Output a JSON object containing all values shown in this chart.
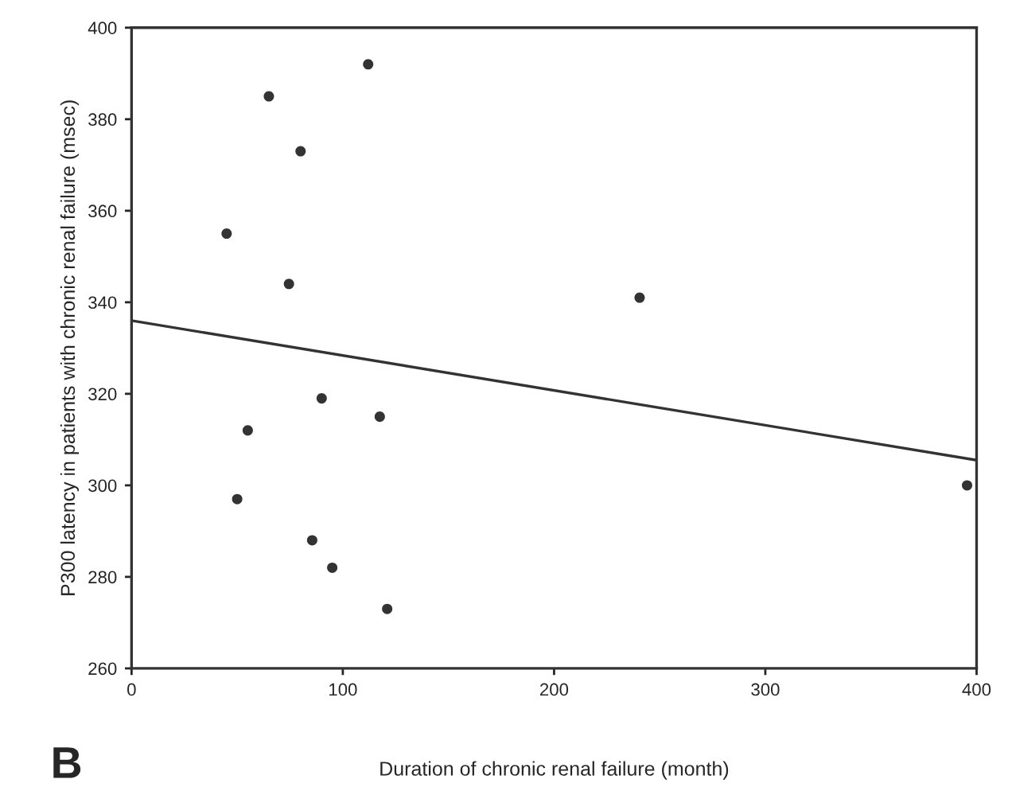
{
  "chart_data": {
    "type": "scatter",
    "xlabel": "Duration of chronic renal failure (month)",
    "ylabel": "P300 latency in patients with chronic renal failure (msec)",
    "xlim": [
      0,
      400
    ],
    "xticks": [
      0,
      100,
      200,
      300,
      400
    ],
    "ylim": [
      260,
      400
    ],
    "yticks": [
      260,
      280,
      300,
      320,
      340,
      360,
      380,
      400
    ],
    "grid": false,
    "legend": false,
    "annotations": [
      "B"
    ],
    "series": [
      {
        "marker": "circle",
        "color": "#333333",
        "x": [
          112,
          65,
          80,
          45,
          74.5,
          90,
          117.5,
          55,
          50,
          85.5,
          95,
          121,
          240.5,
          395.5
        ],
        "values": [
          392,
          385,
          373,
          355,
          344,
          319,
          315,
          312,
          297,
          288,
          282,
          273,
          341,
          300
        ]
      },
      {
        "type": "line",
        "color": "#333333",
        "x": [
          0,
          400
        ],
        "values": [
          336,
          305.5
        ]
      }
    ]
  }
}
